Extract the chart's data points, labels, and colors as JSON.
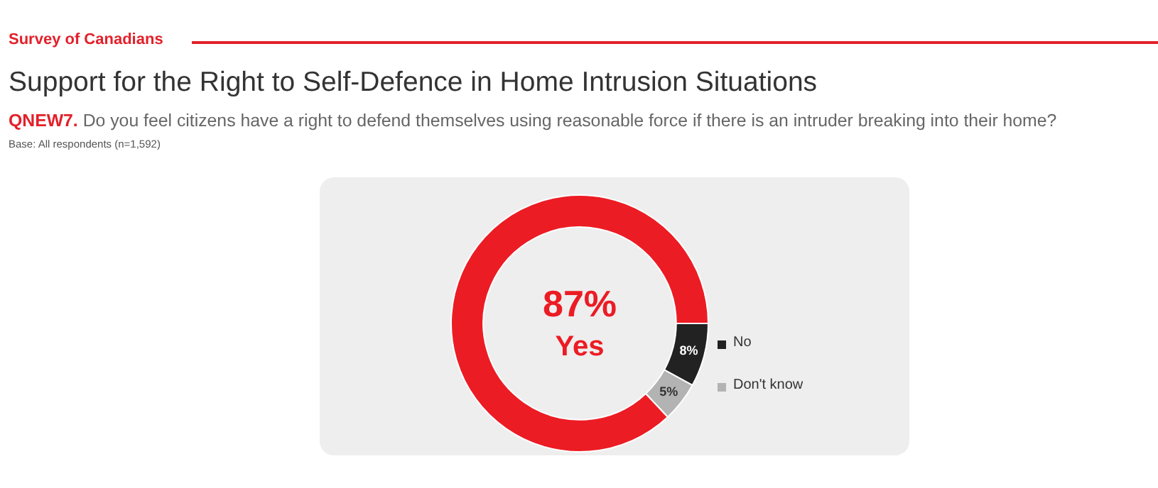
{
  "chart_data": {
    "type": "donut",
    "title": "Support for the Right to Self-Defence in Home Intrusion Situations",
    "subtitle": "QNEW7. Do you feel citizens have a right to defend themselves using reasonable force if there is an intruder breaking into their home?",
    "annotations": [
      "Survey of Canadians",
      "Base: All respondents (n=1,592)",
      "87%"
    ],
    "categories": [
      "No",
      "Don't know",
      "Yes"
    ],
    "values": [
      8,
      5,
      87
    ],
    "colors": [
      "#222222",
      "#b3b3b3",
      "#ec1c24"
    ],
    "value_labels": [
      "8%",
      "5%",
      null
    ],
    "legend": "right"
  }
}
